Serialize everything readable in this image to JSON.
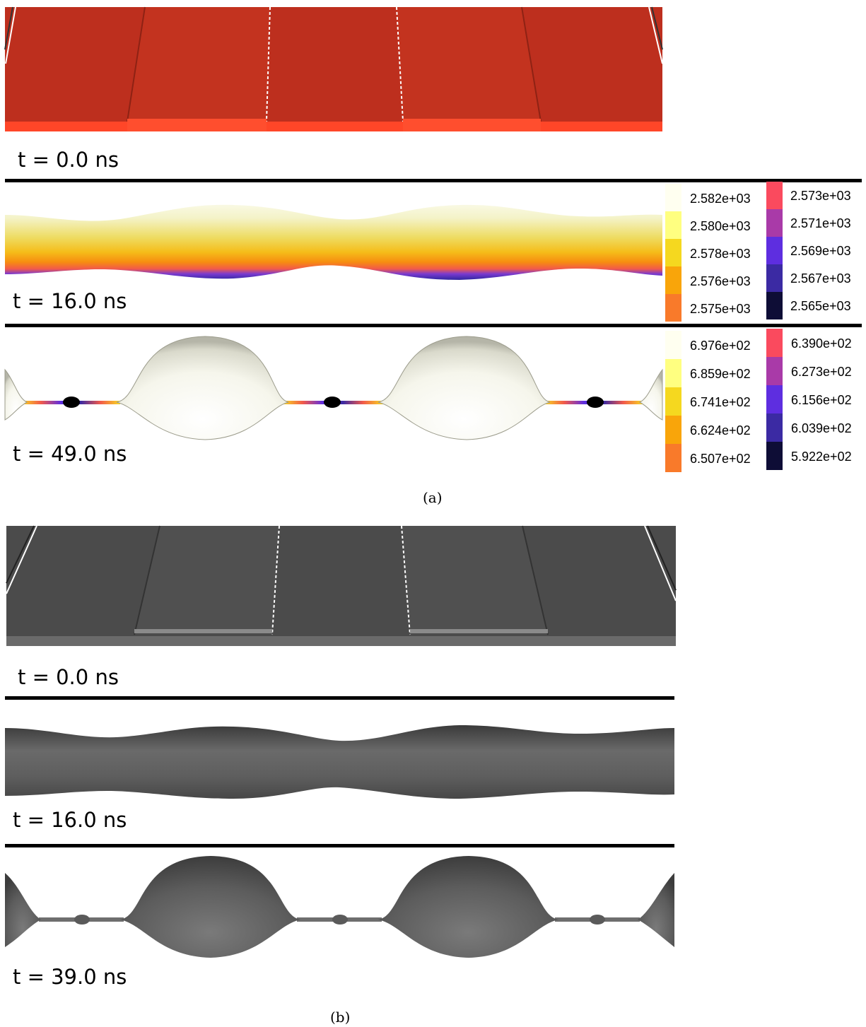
{
  "panel_a": {
    "caption": "(a)",
    "frames": [
      {
        "time_label": "t = 0.0 ns"
      },
      {
        "time_label": "t = 16.0 ns"
      },
      {
        "time_label": "t = 49.0 ns"
      }
    ],
    "legend_16ns": {
      "left": [
        {
          "value": "2.582e+03",
          "color": "#fffff0"
        },
        {
          "value": "2.580e+03",
          "color": "#ffff80"
        },
        {
          "value": "2.578e+03",
          "color": "#f5d81f"
        },
        {
          "value": "2.576e+03",
          "color": "#f9a50a"
        },
        {
          "value": "2.575e+03",
          "color": "#f97a2a"
        }
      ],
      "right": [
        {
          "value": "2.573e+03",
          "color": "#fa4a5e"
        },
        {
          "value": "2.571e+03",
          "color": "#a93aa8"
        },
        {
          "value": "2.569e+03",
          "color": "#5e2ee0"
        },
        {
          "value": "2.567e+03",
          "color": "#3b2aa3"
        },
        {
          "value": "2.565e+03",
          "color": "#0e0d36"
        }
      ]
    },
    "legend_49ns": {
      "left": [
        {
          "value": "6.976e+02",
          "color": "#fffff0"
        },
        {
          "value": "6.859e+02",
          "color": "#ffff80"
        },
        {
          "value": "6.741e+02",
          "color": "#f5d81f"
        },
        {
          "value": "6.624e+02",
          "color": "#f9a50a"
        },
        {
          "value": "6.507e+02",
          "color": "#f97a2a"
        }
      ],
      "right": [
        {
          "value": "6.390e+02",
          "color": "#fa4a5e"
        },
        {
          "value": "6.273e+02",
          "color": "#a93aa8"
        },
        {
          "value": "6.156e+02",
          "color": "#5e2ee0"
        },
        {
          "value": "6.039e+02",
          "color": "#3b2aa3"
        },
        {
          "value": "5.922e+02",
          "color": "#0e0d36"
        }
      ]
    }
  },
  "panel_b": {
    "caption": "(b)",
    "frames": [
      {
        "time_label": "t = 0.0 ns"
      },
      {
        "time_label": "t = 16.0 ns"
      },
      {
        "time_label": "t = 39.0 ns"
      }
    ]
  },
  "colors": {
    "red_top": "#bd2f1e",
    "red_front": "#ff4628",
    "grey_top": "#4b4b4b",
    "grey_front": "#6a6a6a"
  }
}
